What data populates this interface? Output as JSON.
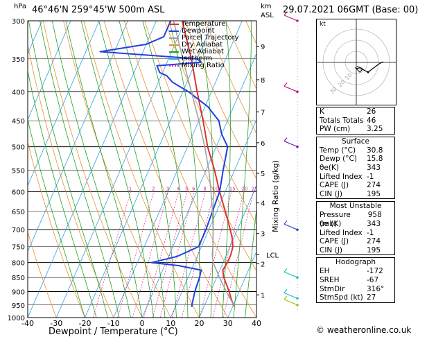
{
  "header": {
    "location": "46°46'N  259°45'W  500m  ASL",
    "date": "29.07.2021  06GMT  (Base: 00)",
    "hpa_unit": "hPa",
    "km_unit": "km",
    "asl_unit": "ASL",
    "xlabel": "Dewpoint / Temperature (°C)",
    "right_label": "Mixing Ratio (g/kg)",
    "credit": "© weatheronline.co.uk"
  },
  "colors": {
    "temperature": "#e03030",
    "dewpoint": "#2040e0",
    "parcel": "#a0a0a0",
    "dry_adiabat": "#e89030",
    "wet_adiabat": "#20a020",
    "isotherm": "#30a0e0",
    "mixing_ratio": "#e020a0",
    "wind": "#20c0c0"
  },
  "legend": [
    {
      "label": "Temperature",
      "color": "#e03030",
      "dash": false
    },
    {
      "label": "Dewpoint",
      "color": "#2040e0",
      "dash": false
    },
    {
      "label": "Parcel Trajectory",
      "color": "#a0a0a0",
      "dash": false
    },
    {
      "label": "Dry Adiabat",
      "color": "#e89030",
      "dash": false
    },
    {
      "label": "Wet Adiabat",
      "color": "#20a020",
      "dash": false
    },
    {
      "label": "Isotherm",
      "color": "#30a0e0",
      "dash": false
    },
    {
      "label": "Mixing Ratio",
      "color": "#e020a0",
      "dash": true
    }
  ],
  "hodograph": {
    "unit": "kt",
    "rings": [
      "10",
      "20",
      "30"
    ]
  },
  "indices": {
    "top": [
      {
        "label": "K",
        "value": "26"
      },
      {
        "label": "Totals Totals",
        "value": "46"
      },
      {
        "label": "PW (cm)",
        "value": "3.25"
      }
    ],
    "surface_title": "Surface",
    "surface": [
      {
        "label": "Temp (°C)",
        "value": "30.8"
      },
      {
        "label": "Dewp (°C)",
        "value": "15.8"
      },
      {
        "label": "θe(K)",
        "value": "343"
      },
      {
        "label": "Lifted Index",
        "value": "-1"
      },
      {
        "label": "CAPE (J)",
        "value": "274"
      },
      {
        "label": "CIN (J)",
        "value": "195"
      }
    ],
    "mu_title": "Most Unstable",
    "mu": [
      {
        "label": "Pressure (mb)",
        "value": "958"
      },
      {
        "label": "θe (K)",
        "value": "343"
      },
      {
        "label": "Lifted Index",
        "value": "-1"
      },
      {
        "label": "CAPE (J)",
        "value": "274"
      },
      {
        "label": "CIN (J)",
        "value": "195"
      }
    ],
    "hodo_title": "Hodograph",
    "hodo": [
      {
        "label": "EH",
        "value": "-172"
      },
      {
        "label": "SREH",
        "value": "-67"
      },
      {
        "label": "StmDir",
        "value": "316°"
      },
      {
        "label": "StmSpd (kt)",
        "value": "27"
      }
    ]
  },
  "chart_data": {
    "type": "line",
    "title": "46°46'N 259°45'W 500m ASL",
    "xlabel": "Dewpoint / Temperature (°C)",
    "ylabel": "hPa",
    "x_ticks": [
      "-40",
      "-30",
      "-20",
      "-10",
      "0",
      "10",
      "20",
      "30",
      "40"
    ],
    "xlim": [
      -40,
      40
    ],
    "y_ticks": [
      "300",
      "350",
      "400",
      "450",
      "500",
      "550",
      "600",
      "650",
      "700",
      "750",
      "800",
      "850",
      "900",
      "950",
      "1000"
    ],
    "ylim": [
      1000,
      300
    ],
    "y_scale": "log",
    "km_ticks": [
      {
        "label": "1",
        "p": 912
      },
      {
        "label": "2",
        "p": 804
      },
      {
        "label": "3",
        "p": 711
      },
      {
        "label": "4",
        "p": 628
      },
      {
        "label": "5",
        "p": 557
      },
      {
        "label": "6",
        "p": 492
      },
      {
        "label": "7",
        "p": 434
      },
      {
        "label": "8",
        "p": 381
      },
      {
        "label": "9",
        "p": 333
      }
    ],
    "lcl": {
      "label": "LCL",
      "p": 775
    },
    "mixing_ratio_labels": [
      "1",
      "2",
      "3",
      "4",
      "5",
      "6",
      "8",
      "10",
      "15",
      "20",
      "25"
    ],
    "series": [
      {
        "name": "Temperature",
        "p": [
          958,
          950,
          925,
          900,
          850,
          825,
          800,
          775,
          750,
          725,
          700,
          650,
          600,
          550,
          500,
          450,
          400,
          350,
          300
        ],
        "values": [
          30.8,
          30.0,
          28.2,
          26.5,
          22.5,
          21.0,
          21.5,
          21.5,
          21.0,
          19.5,
          17.5,
          13.0,
          8.0,
          3.0,
          -3.0,
          -8.5,
          -15.0,
          -22.0,
          -31.0
        ]
      },
      {
        "name": "Dewpoint",
        "p": [
          958,
          950,
          925,
          900,
          850,
          825,
          810,
          800,
          790,
          780,
          770,
          760,
          750,
          725,
          700,
          650,
          600,
          550,
          500,
          475,
          450,
          425,
          400,
          385,
          375,
          370,
          360,
          355,
          350,
          340,
          330,
          320,
          310,
          300
        ],
        "values": [
          15.8,
          15.5,
          15.0,
          14.5,
          14.0,
          13.5,
          5.0,
          -5.0,
          -1.0,
          3.0,
          5.0,
          7.0,
          9.0,
          9.0,
          9.0,
          8.5,
          8.0,
          6.0,
          4.0,
          0.0,
          -3.0,
          -9.0,
          -18.0,
          -25.0,
          -28.0,
          -31.0,
          -33.0,
          -18.0,
          -20.0,
          -55.0,
          -40.0,
          -35.0,
          -35.0,
          -35.0
        ]
      },
      {
        "name": "Parcel Trajectory",
        "p": [
          958,
          900,
          850,
          800,
          775,
          750,
          700,
          650,
          600,
          550,
          500,
          450,
          400,
          350,
          300
        ],
        "values": [
          30.8,
          25.5,
          21.0,
          16.5,
          15.0,
          14.0,
          11.5,
          8.5,
          5.0,
          1.0,
          -4.0,
          -10.0,
          -17.0,
          -25.0,
          -34.0
        ]
      }
    ]
  }
}
